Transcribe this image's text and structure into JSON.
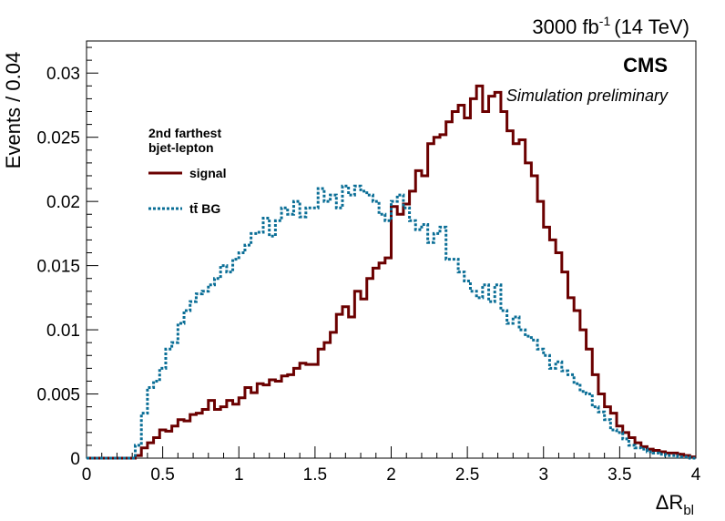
{
  "chart_data": {
    "type": "line",
    "style": "step-histogram",
    "header_lumi": "3000 fb",
    "header_lumi_exp": "-1",
    "header_energy": "(14 TeV)",
    "cms_label": "CMS",
    "sim_label": "Simulation preliminary",
    "xlabel_main": "ΔR",
    "xlabel_sub": "bl",
    "ylabel": "Events / 0.04",
    "xlim": [
      0,
      4
    ],
    "ylim": [
      0,
      0.0325
    ],
    "x_ticks": [
      "0",
      "0.5",
      "1",
      "1.5",
      "2",
      "2.5",
      "3",
      "3.5",
      "4"
    ],
    "y_ticks": [
      "0",
      "0.005",
      "0.01",
      "0.015",
      "0.02",
      "0.025",
      "0.03"
    ],
    "grid": false,
    "legend": {
      "position": "top-left",
      "title_line1": "2nd farthest",
      "title_line2": "bjet-lepton",
      "entries": [
        "signal",
        "tt̄ BG"
      ]
    },
    "bin_width": 0.04,
    "bin_start": 0,
    "series": [
      {
        "name": "signal",
        "color": "#6b0000",
        "dashed": false,
        "values": [
          0,
          0,
          0,
          0,
          0,
          0,
          0,
          0,
          0.0002,
          0.0008,
          0.0012,
          0.0016,
          0.0022,
          0.0021,
          0.0025,
          0.003,
          0.0029,
          0.0034,
          0.0035,
          0.0038,
          0.0045,
          0.0038,
          0.004,
          0.0045,
          0.0042,
          0.0047,
          0.0055,
          0.0051,
          0.0058,
          0.0057,
          0.0061,
          0.006,
          0.0064,
          0.0065,
          0.007,
          0.0074,
          0.0073,
          0.0073,
          0.0085,
          0.009,
          0.0098,
          0.0112,
          0.0118,
          0.011,
          0.013,
          0.0124,
          0.014,
          0.0148,
          0.0152,
          0.0156,
          0.0196,
          0.019,
          0.0198,
          0.0208,
          0.0224,
          0.022,
          0.0245,
          0.025,
          0.0252,
          0.0262,
          0.027,
          0.0275,
          0.0265,
          0.028,
          0.029,
          0.027,
          0.0282,
          0.0285,
          0.027,
          0.0255,
          0.0245,
          0.0248,
          0.023,
          0.022,
          0.02,
          0.018,
          0.017,
          0.016,
          0.0145,
          0.0125,
          0.0115,
          0.01,
          0.0085,
          0.0065,
          0.005,
          0.004,
          0.0035,
          0.0025,
          0.002,
          0.0016,
          0.0012,
          0.0009,
          0.0007,
          0.0006,
          0.0005,
          0.0004,
          0.0004,
          0.0003,
          0.0002,
          0.0001
        ]
      },
      {
        "name": "tt̄ BG",
        "color": "#0a6e96",
        "dashed": true,
        "values": [
          0,
          0,
          0,
          0,
          0,
          0,
          0,
          0,
          0.001,
          0.0035,
          0.0055,
          0.006,
          0.007,
          0.0085,
          0.009,
          0.0105,
          0.0115,
          0.0122,
          0.0128,
          0.013,
          0.0135,
          0.014,
          0.015,
          0.0145,
          0.0155,
          0.016,
          0.0166,
          0.0175,
          0.0176,
          0.0187,
          0.0173,
          0.0185,
          0.0195,
          0.019,
          0.02,
          0.0188,
          0.0195,
          0.0195,
          0.021,
          0.02,
          0.0205,
          0.0195,
          0.0212,
          0.0205,
          0.0212,
          0.0208,
          0.0205,
          0.02,
          0.019,
          0.0185,
          0.02,
          0.0205,
          0.0195,
          0.0185,
          0.0178,
          0.0182,
          0.0168,
          0.0175,
          0.018,
          0.0155,
          0.0155,
          0.0145,
          0.0138,
          0.013,
          0.0125,
          0.0135,
          0.0122,
          0.0135,
          0.0115,
          0.0105,
          0.011,
          0.01,
          0.0095,
          0.0092,
          0.0085,
          0.008,
          0.007,
          0.0075,
          0.0068,
          0.0065,
          0.0058,
          0.0052,
          0.005,
          0.004,
          0.0036,
          0.003,
          0.0022,
          0.002,
          0.0015,
          0.001,
          0.0008,
          0.0007,
          0.0005,
          0.0004,
          0.0003,
          0.0002,
          0.0002,
          0.0001,
          0.0001,
          0
        ]
      }
    ]
  }
}
